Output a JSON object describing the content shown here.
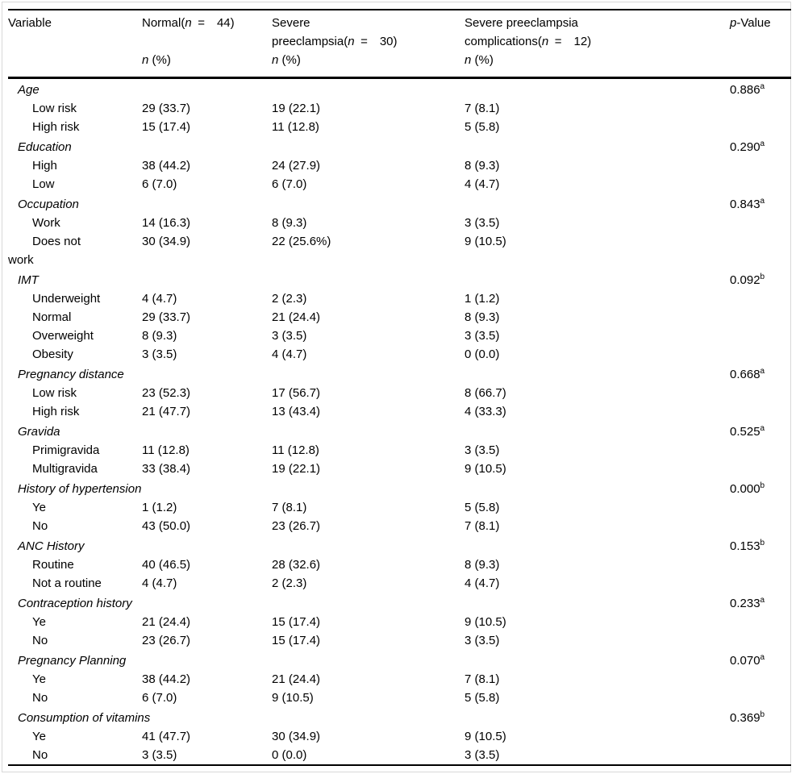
{
  "header": {
    "col1": "Variable",
    "col2": {
      "pre": "Normal(",
      "n": "n",
      "post": " =  44)"
    },
    "col3": {
      "line1": "Severe",
      "pre": "preeclampsia(",
      "n": "n",
      "post": " =  30)"
    },
    "col4": {
      "line1": "Severe preeclampsia",
      "pre": "complications(",
      "n": "n",
      "post": " =  12)"
    },
    "col5": {
      "p": "p",
      "rest": "-Value"
    },
    "sub_n": "n",
    "sub_rest": " (%)"
  },
  "rows": [
    {
      "t": "cat",
      "l": "Age",
      "c1": "",
      "c2": "",
      "c3": "",
      "p": "0.886",
      "ps": "a"
    },
    {
      "t": "sub",
      "l": "Low risk",
      "c1": "29 (33.7)",
      "c2": "19 (22.1)",
      "c3": "7 (8.1)",
      "p": "",
      "ps": ""
    },
    {
      "t": "sub",
      "l": "High risk",
      "c1": "15 (17.4)",
      "c2": "11 (12.8)",
      "c3": "5 (5.8)",
      "p": "",
      "ps": ""
    },
    {
      "t": "cat",
      "l": "Education",
      "c1": "",
      "c2": "",
      "c3": "",
      "p": "0.290",
      "ps": "a"
    },
    {
      "t": "sub",
      "l": "High",
      "c1": "38 (44.2)",
      "c2": "24 (27.9)",
      "c3": "8 (9.3)",
      "p": "",
      "ps": ""
    },
    {
      "t": "sub",
      "l": "Low",
      "c1": "6 (7.0)",
      "c2": "6 (7.0)",
      "c3": "4 (4.7)",
      "p": "",
      "ps": ""
    },
    {
      "t": "cat",
      "l": "Occupation",
      "c1": "",
      "c2": "",
      "c3": "",
      "p": "0.843",
      "ps": "a"
    },
    {
      "t": "sub",
      "l": "Work",
      "c1": "14 (16.3)",
      "c2": "8 (9.3)",
      "c3": "3 (3.5)",
      "p": "",
      "ps": ""
    },
    {
      "t": "sub",
      "l": "Does not",
      "l2": "work",
      "c1": "30 (34.9)",
      "c2": "22 (25.6%)",
      "c3": "9 (10.5)",
      "p": "",
      "ps": ""
    },
    {
      "t": "cat",
      "l": "IMT",
      "c1": "",
      "c2": "",
      "c3": "",
      "p": "0.092",
      "ps": "b"
    },
    {
      "t": "sub",
      "l": "Underweight",
      "c1": "4 (4.7)",
      "c2": "2 (2.3)",
      "c3": "1 (1.2)",
      "p": "",
      "ps": ""
    },
    {
      "t": "sub",
      "l": "Normal",
      "c1": "29 (33.7)",
      "c2": "21 (24.4)",
      "c3": "8 (9.3)",
      "p": "",
      "ps": ""
    },
    {
      "t": "sub",
      "l": "Overweight",
      "c1": "8 (9.3)",
      "c2": "3 (3.5)",
      "c3": "3 (3.5)",
      "p": "",
      "ps": ""
    },
    {
      "t": "sub",
      "l": "Obesity",
      "c1": "3 (3.5)",
      "c2": "4 (4.7)",
      "c3": "0 (0.0)",
      "p": "",
      "ps": ""
    },
    {
      "t": "cat",
      "l": "Pregnancy distance",
      "c1": "",
      "c2": "",
      "c3": "",
      "p": "0.668",
      "ps": "a"
    },
    {
      "t": "sub",
      "l": "Low risk",
      "c1": "23 (52.3)",
      "c2": "17 (56.7)",
      "c3": "8 (66.7)",
      "p": "",
      "ps": ""
    },
    {
      "t": "sub",
      "l": "High risk",
      "c1": "21 (47.7)",
      "c2": "13 (43.4)",
      "c3": "4 (33.3)",
      "p": "",
      "ps": ""
    },
    {
      "t": "cat",
      "l": "Gravida",
      "c1": "",
      "c2": "",
      "c3": "",
      "p": "0.525",
      "ps": "a"
    },
    {
      "t": "sub",
      "l": "Primigravida",
      "c1": "11 (12.8)",
      "c2": "11 (12.8)",
      "c3": "3 (3.5)",
      "p": "",
      "ps": ""
    },
    {
      "t": "sub",
      "l": "Multigravida",
      "c1": "33 (38.4)",
      "c2": "19 (22.1)",
      "c3": "9 (10.5)",
      "p": "",
      "ps": ""
    },
    {
      "t": "cat",
      "l": "History of hypertension",
      "c1": "",
      "c2": "",
      "c3": "",
      "p": "0.000",
      "ps": "b"
    },
    {
      "t": "sub",
      "l": "Ye",
      "c1": "1 (1.2)",
      "c2": "7 (8.1)",
      "c3": "5 (5.8)",
      "p": "",
      "ps": ""
    },
    {
      "t": "sub",
      "l": "No",
      "c1": "43 (50.0)",
      "c2": "23 (26.7)",
      "c3": "7 (8.1)",
      "p": "",
      "ps": ""
    },
    {
      "t": "cat",
      "l": "ANC History",
      "c1": "",
      "c2": "",
      "c3": "",
      "p": "0.153",
      "ps": "b"
    },
    {
      "t": "sub",
      "l": "Routine",
      "c1": "40 (46.5)",
      "c2": "28 (32.6)",
      "c3": "8 (9.3)",
      "p": "",
      "ps": ""
    },
    {
      "t": "sub",
      "l": "Not a routine",
      "c1": "4 (4.7)",
      "c2": "2 (2.3)",
      "c3": "4 (4.7)",
      "p": "",
      "ps": ""
    },
    {
      "t": "cat",
      "l": "Contraception history",
      "c1": "",
      "c2": "",
      "c3": "",
      "p": "0.233",
      "ps": "a"
    },
    {
      "t": "sub",
      "l": "Ye",
      "c1": "21 (24.4)",
      "c2": "15 (17.4)",
      "c3": "9 (10.5)",
      "p": "",
      "ps": ""
    },
    {
      "t": "sub",
      "l": "No",
      "c1": "23 (26.7)",
      "c2": "15 (17.4)",
      "c3": "3 (3.5)",
      "p": "",
      "ps": ""
    },
    {
      "t": "cat",
      "l": "Pregnancy Planning",
      "c1": "",
      "c2": "",
      "c3": "",
      "p": "0.070",
      "ps": "a"
    },
    {
      "t": "sub",
      "l": "Ye",
      "c1": "38 (44.2)",
      "c2": "21 (24.4)",
      "c3": "7 (8.1)",
      "p": "",
      "ps": ""
    },
    {
      "t": "sub",
      "l": "No",
      "c1": "6 (7.0)",
      "c2": "9 (10.5)",
      "c3": "5 (5.8)",
      "p": "",
      "ps": ""
    },
    {
      "t": "cat",
      "l": "Consumption of vitamins",
      "c1": "",
      "c2": "",
      "c3": "",
      "p": "0.369",
      "ps": "b"
    },
    {
      "t": "sub",
      "l": "Ye",
      "c1": "41 (47.7)",
      "c2": "30 (34.9)",
      "c3": "9 (10.5)",
      "p": "",
      "ps": ""
    },
    {
      "t": "sub",
      "l": "No",
      "c1": "3 (3.5)",
      "c2": "0 (0.0)",
      "c3": "3 (3.5)",
      "p": "",
      "ps": ""
    }
  ]
}
